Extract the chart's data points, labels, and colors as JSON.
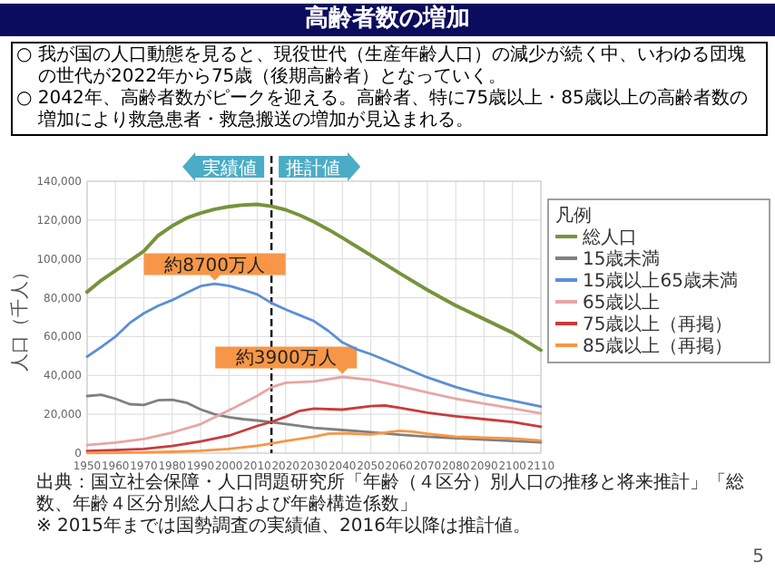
{
  "chart_data": {
    "type": "line",
    "title": "高齢者数の増加",
    "ylabel": "人口（千人）",
    "legend_title": "凡例",
    "legend": "right",
    "grid": true,
    "xlim": [
      1950,
      2110
    ],
    "xticks": [
      1950,
      1960,
      1970,
      1980,
      1990,
      2000,
      2010,
      2020,
      2030,
      2040,
      2050,
      2060,
      2070,
      2080,
      2090,
      2100,
      2110
    ],
    "ylim": [
      0,
      140000
    ],
    "yticks": [
      0,
      {
        "value": 20000,
        "label": "20,000"
      },
      {
        "value": 40000,
        "label": "40,000"
      },
      {
        "value": 60000,
        "label": "60,000"
      },
      {
        "value": 80000,
        "label": "80,000"
      },
      {
        "value": 100000,
        "label": "100,000"
      },
      {
        "value": 120000,
        "label": "120,000"
      },
      {
        "value": 140000,
        "label": "140,000"
      }
    ],
    "ref_lines": [
      {
        "axis": "x",
        "value": 2015,
        "color": "#000000",
        "line_style": "dashed"
      }
    ],
    "annotations": [
      "○ 我が国の人口動態を見ると、現役世代（生産年齢人口）の減少が続く中、いわゆる団塊の世代が2022年から75歳（後期高齢者）となっていく。",
      "○ 2042年、高齢者数がピークを迎える。高齢者、特に75歳以上・85歳以上の高齢者数の増加により救急患者・救急搬送の増加が見込まれる。",
      "実績値",
      "推計値",
      "出典：国立社会保障・人口問題研究所「年齢（４区分）別人口の推移と将来推計」「総数、年齢４区分別総人口および年齢構造係数」",
      "※ 2015年までは国勢調査の実績値、2016年以降は推計値。",
      "5",
      {
        "text": "約8700万人",
        "x": 1995,
        "y": 87000
      },
      {
        "text": "約3900万人",
        "x": 2040,
        "y": 39000
      }
    ],
    "series": [
      {
        "name": "総人口",
        "color": "#77933c",
        "x": [
          1950,
          1955,
          1960,
          1965,
          1970,
          1975,
          1980,
          1985,
          1990,
          1995,
          2000,
          2005,
          2010,
          2015,
          2020,
          2025,
          2030,
          2035,
          2040,
          2045,
          2050,
          2060,
          2070,
          2080,
          2090,
          2100,
          2110
        ],
        "values": [
          83000,
          89000,
          94000,
          99000,
          104000,
          112000,
          117000,
          121000,
          123600,
          125600,
          126900,
          127800,
          128100,
          127100,
          125300,
          122500,
          119100,
          115200,
          110900,
          106400,
          101900,
          92800,
          84000,
          76000,
          69000,
          62000,
          53000
        ]
      },
      {
        "name": "15歳未満",
        "color": "#808080",
        "x": [
          1950,
          1955,
          1960,
          1965,
          1970,
          1975,
          1980,
          1985,
          1990,
          1995,
          2000,
          2005,
          2010,
          2015,
          2020,
          2030,
          2040,
          2050,
          2060,
          2070,
          2080,
          2090,
          2100,
          2110
        ],
        "values": [
          29400,
          30000,
          28000,
          25200,
          24800,
          27200,
          27500,
          26000,
          22500,
          20000,
          18500,
          17500,
          16800,
          15900,
          15000,
          13000,
          11900,
          10800,
          9500,
          8500,
          7700,
          6900,
          6200,
          5500
        ]
      },
      {
        "name": "15歳以上65歳未満",
        "color": "#5b8fd6",
        "x": [
          1950,
          1955,
          1960,
          1965,
          1970,
          1975,
          1980,
          1985,
          1990,
          1995,
          2000,
          2005,
          2010,
          2015,
          2020,
          2025,
          2030,
          2035,
          2040,
          2045,
          2050,
          2060,
          2070,
          2080,
          2090,
          2100,
          2110
        ],
        "values": [
          49700,
          54700,
          60000,
          67000,
          72000,
          75800,
          78800,
          82500,
          86000,
          87200,
          86200,
          84100,
          81700,
          77300,
          74000,
          71000,
          68000,
          63000,
          57000,
          53500,
          51000,
          45000,
          39000,
          34000,
          30000,
          27000,
          24000
        ]
      },
      {
        "name": "65歳以上",
        "color": "#e6a6a6",
        "x": [
          1950,
          1960,
          1970,
          1980,
          1990,
          2000,
          2010,
          2015,
          2020,
          2030,
          2040,
          2050,
          2060,
          2070,
          2080,
          2090,
          2100,
          2110
        ],
        "values": [
          4100,
          5400,
          7300,
          10600,
          14900,
          22000,
          29500,
          33900,
          36200,
          36900,
          39200,
          37700,
          34600,
          31200,
          28000,
          25500,
          23000,
          20500
        ]
      },
      {
        "name": "75歳以上（再掲）",
        "color": "#c83c3c",
        "x": [
          1950,
          1960,
          1970,
          1980,
          1990,
          2000,
          2010,
          2015,
          2020,
          2025,
          2030,
          2040,
          2050,
          2055,
          2060,
          2070,
          2080,
          2090,
          2100,
          2110
        ],
        "values": [
          1100,
          1600,
          2200,
          3700,
          6000,
          9000,
          14000,
          16100,
          18700,
          21800,
          22900,
          22400,
          24200,
          24500,
          23400,
          20800,
          19000,
          17500,
          16000,
          13600
        ]
      },
      {
        "name": "85歳以上（再掲）",
        "color": "#f79646",
        "x": [
          1950,
          1960,
          1970,
          1980,
          1990,
          2000,
          2010,
          2015,
          2020,
          2030,
          2035,
          2040,
          2050,
          2060,
          2065,
          2070,
          2080,
          2090,
          2100,
          2110
        ],
        "values": [
          100,
          200,
          400,
          700,
          1200,
          2200,
          3800,
          5000,
          6200,
          8500,
          10000,
          10200,
          9600,
          11500,
          11000,
          10000,
          8500,
          8000,
          7500,
          6500
        ]
      }
    ]
  }
}
